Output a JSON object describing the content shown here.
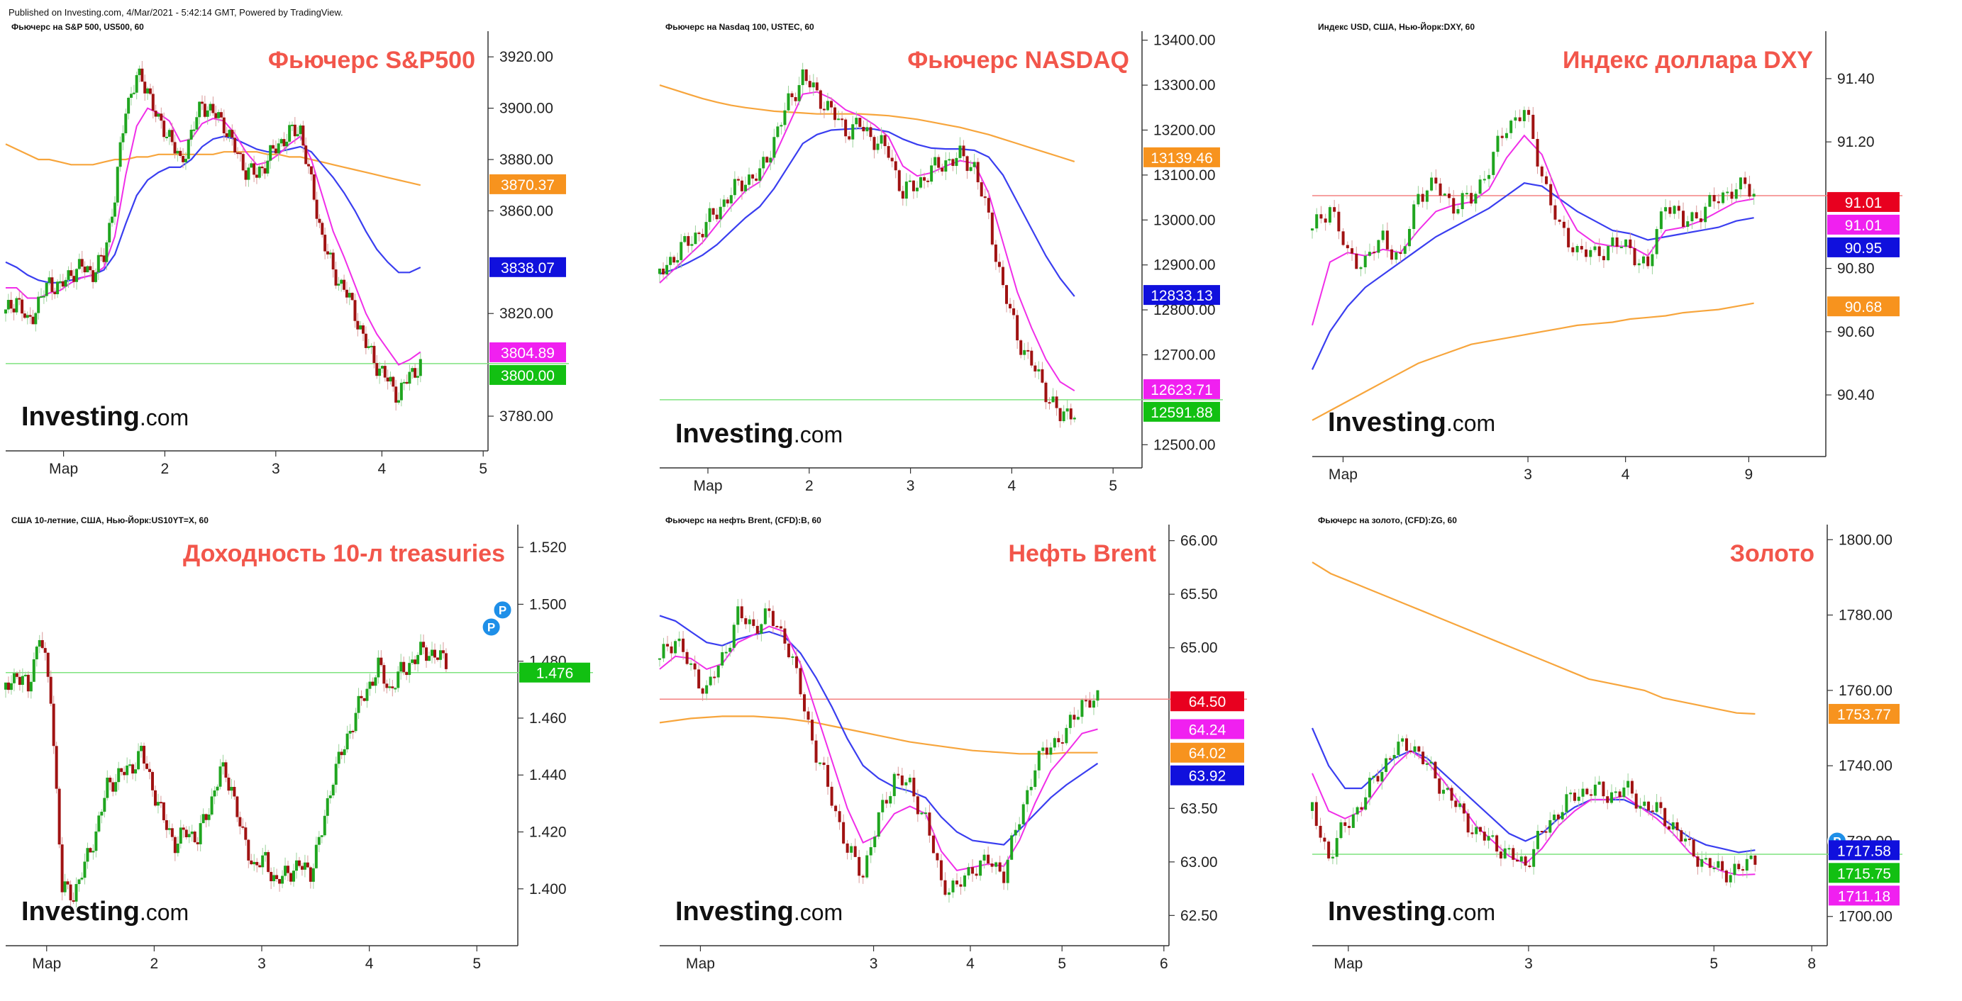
{
  "published": "Published on Investing.com, 4/Mar/2021 - 5:42:14 GMT, Powered by TradingView.",
  "watermark": {
    "main": "Investing",
    "suffix": ".com"
  },
  "colors": {
    "title": "#f2564b",
    "candle_up": "#1fa51f",
    "candle_down": "#a01212",
    "ema_fast": "#f02ee8",
    "ema_mid": "#3a3ef0",
    "ma_slow": "#f7a53c",
    "last_price_line": "#7fe37f",
    "level_line_red": "#f48080"
  },
  "chart_data": [
    {
      "type": "candlestick",
      "symbol": "Фьючерс на S&P 500, US500, 60",
      "title": "Фьючерс S&P500",
      "x_ticks": [
        "Мар",
        "2",
        "3",
        "4",
        "5"
      ],
      "y_ticks": [
        "3920.00",
        "3900.00",
        "3880.00",
        "3860.00",
        "3820.00",
        "3780.00"
      ],
      "ylim": [
        3772,
        3930
      ],
      "price_labels": [
        {
          "text": "3870.37",
          "value": 3870.37,
          "color": "#f7931e"
        },
        {
          "text": "3838.07",
          "value": 3838.07,
          "color": "#1010dd"
        },
        {
          "text": "3804.89",
          "value": 3804.89,
          "color": "#f020f0"
        },
        {
          "text": "3800.00",
          "value": 3800.0,
          "color": "#12c012"
        }
      ],
      "hline": {
        "value": 3800.5,
        "color": "#7fe37f"
      },
      "path": [
        3820,
        3826,
        3816,
        3824,
        3832,
        3830,
        3836,
        3838,
        3836,
        3842,
        3866,
        3900,
        3912,
        3908,
        3894,
        3890,
        3878,
        3890,
        3902,
        3898,
        3894,
        3884,
        3876,
        3874,
        3880,
        3886,
        3890,
        3892,
        3870,
        3850,
        3836,
        3830,
        3820,
        3808,
        3800,
        3794,
        3788,
        3796,
        3800
      ],
      "ma_slow": [
        3886,
        3884,
        3882,
        3880,
        3880,
        3879,
        3878,
        3878,
        3878,
        3879,
        3880,
        3880,
        3881,
        3881,
        3882,
        3882,
        3882,
        3882,
        3882,
        3882,
        3883,
        3883,
        3883,
        3883,
        3882,
        3882,
        3881,
        3881,
        3880,
        3879,
        3878,
        3877,
        3876,
        3875,
        3874,
        3873,
        3872,
        3871,
        3870
      ],
      "ema_mid": [
        3840,
        3838,
        3835,
        3833,
        3832,
        3832,
        3833,
        3834,
        3835,
        3837,
        3843,
        3855,
        3866,
        3872,
        3875,
        3877,
        3877,
        3880,
        3885,
        3888,
        3889,
        3888,
        3886,
        3884,
        3883,
        3883,
        3884,
        3885,
        3883,
        3878,
        3873,
        3867,
        3860,
        3852,
        3845,
        3840,
        3836,
        3836,
        3838
      ],
      "ema_fast": [
        3830,
        3830,
        3826,
        3826,
        3828,
        3829,
        3832,
        3834,
        3835,
        3838,
        3850,
        3874,
        3893,
        3900,
        3898,
        3895,
        3887,
        3888,
        3894,
        3896,
        3895,
        3890,
        3883,
        3878,
        3879,
        3882,
        3886,
        3889,
        3880,
        3866,
        3852,
        3842,
        3831,
        3820,
        3812,
        3806,
        3800,
        3802,
        3805
      ]
    },
    {
      "type": "candlestick",
      "symbol": "Фьючерс на Nasdaq 100, USTEC, 60",
      "title": "Фьючерс NASDAQ",
      "x_ticks": [
        "Мар",
        "2",
        "3",
        "4",
        "5"
      ],
      "y_ticks": [
        "13400.00",
        "13300.00",
        "13200.00",
        "13100.00",
        "13000.00",
        "12900.00",
        "12800.00",
        "12700.00",
        "12500.00"
      ],
      "ylim": [
        12480,
        13420
      ],
      "price_labels": [
        {
          "text": "13139.46",
          "value": 13139.46,
          "color": "#f7931e"
        },
        {
          "text": "12833.13",
          "value": 12833.13,
          "color": "#1010dd"
        },
        {
          "text": "12623.71",
          "value": 12623.71,
          "color": "#f020f0"
        },
        {
          "text": "12591.88",
          "value": 12591.88,
          "color": "#12c012"
        }
      ],
      "hline": {
        "value": 12600,
        "color": "#7fe37f"
      },
      "path": [
        12880,
        12920,
        12950,
        12980,
        13020,
        13060,
        13090,
        13100,
        13180,
        13260,
        13320,
        13280,
        13240,
        13200,
        13210,
        13180,
        13150,
        13060,
        13080,
        13110,
        13130,
        13140,
        13120,
        13000,
        12850,
        12740,
        12680,
        12620,
        12560,
        12580
      ],
      "ma_slow": [
        13300,
        13290,
        13280,
        13270,
        13262,
        13255,
        13250,
        13246,
        13242,
        13240,
        13238,
        13236,
        13236,
        13236,
        13236,
        13234,
        13232,
        13228,
        13224,
        13218,
        13212,
        13206,
        13198,
        13190,
        13180,
        13170,
        13160,
        13150,
        13140,
        13130
      ],
      "ema_mid": [
        12880,
        12890,
        12905,
        12922,
        12945,
        12975,
        13005,
        13030,
        13070,
        13120,
        13170,
        13190,
        13200,
        13202,
        13204,
        13202,
        13196,
        13180,
        13168,
        13160,
        13158,
        13158,
        13155,
        13140,
        13100,
        13040,
        12980,
        12920,
        12870,
        12830
      ],
      "ema_fast": [
        12860,
        12890,
        12920,
        12950,
        12990,
        13030,
        13065,
        13085,
        13140,
        13210,
        13280,
        13285,
        13270,
        13245,
        13232,
        13212,
        13185,
        13120,
        13098,
        13105,
        13120,
        13132,
        13126,
        13060,
        12950,
        12840,
        12760,
        12690,
        12640,
        12620
      ]
    },
    {
      "type": "candlestick",
      "symbol": "Индекс USD, США, Нью-Йорк:DXY, 60",
      "title": "Индекс доллара DXY",
      "x_ticks": [
        "Мар",
        "3",
        "4",
        "9"
      ],
      "y_ticks": [
        "91.40",
        "91.20",
        "90.80",
        "90.60",
        "90.40"
      ],
      "ylim": [
        90.25,
        91.55
      ],
      "price_labels": [
        {
          "text": "91.01",
          "value": 91.01,
          "color": "#e8001f"
        },
        {
          "text": "91.01",
          "value": 91.01,
          "color": "#f020f0"
        },
        {
          "text": "90.95",
          "value": 90.95,
          "color": "#1010dd"
        },
        {
          "text": "90.68",
          "value": 90.68,
          "color": "#f7931e"
        }
      ],
      "hline": {
        "value": 91.03,
        "color": "#f48080"
      },
      "path": [
        90.92,
        91.0,
        90.84,
        90.82,
        90.9,
        90.82,
        91.04,
        91.06,
        91.0,
        91.02,
        91.12,
        91.25,
        91.3,
        91.1,
        90.92,
        90.86,
        90.84,
        90.88,
        90.86,
        90.8,
        91.02,
        90.94,
        90.98,
        91.02,
        91.06,
        91.04
      ],
      "ma_slow": [
        90.32,
        90.35,
        90.38,
        90.41,
        90.44,
        90.47,
        90.5,
        90.52,
        90.54,
        90.56,
        90.57,
        90.58,
        90.59,
        90.6,
        90.61,
        90.62,
        90.625,
        90.63,
        90.64,
        90.645,
        90.65,
        90.66,
        90.665,
        90.67,
        90.68,
        90.69
      ],
      "ema_mid": [
        90.48,
        90.6,
        90.68,
        90.74,
        90.78,
        90.82,
        90.86,
        90.9,
        90.93,
        90.96,
        90.99,
        91.03,
        91.07,
        91.06,
        91.02,
        90.98,
        90.95,
        90.92,
        90.91,
        90.89,
        90.9,
        90.91,
        90.92,
        90.93,
        90.95,
        90.96
      ],
      "ema_fast": [
        90.62,
        90.82,
        90.85,
        90.84,
        90.86,
        90.85,
        90.92,
        90.98,
        91.0,
        91.01,
        91.05,
        91.15,
        91.22,
        91.16,
        91.02,
        90.92,
        90.88,
        90.87,
        90.87,
        90.84,
        90.92,
        90.93,
        90.95,
        90.98,
        91.01,
        91.02
      ]
    },
    {
      "type": "candlestick",
      "symbol": "США 10-летние, США, Нью-Йорк:US10YT=X, 60",
      "title": "Доходность 10-л treasuries",
      "x_ticks": [
        "Мар",
        "2",
        "3",
        "4",
        "5"
      ],
      "y_ticks": [
        "1.520",
        "1.500",
        "1.480",
        "1.460",
        "1.440",
        "1.420",
        "1.400"
      ],
      "ylim": [
        1.385,
        1.528
      ],
      "price_labels": [
        {
          "text": "1.476",
          "value": 1.476,
          "color": "#12c012"
        }
      ],
      "hline": {
        "value": 1.476,
        "color": "#7fe37f"
      },
      "markers": [
        {
          "text": "P",
          "x": 43,
          "value": 1.492
        },
        {
          "text": "P",
          "x": 44,
          "value": 1.498
        }
      ],
      "path": [
        1.47,
        1.476,
        1.47,
        1.49,
        1.468,
        1.4,
        1.398,
        1.408,
        1.42,
        1.436,
        1.44,
        1.442,
        1.448,
        1.436,
        1.424,
        1.416,
        1.42,
        1.418,
        1.428,
        1.442,
        1.436,
        1.418,
        1.408,
        1.41,
        1.402,
        1.406,
        1.408,
        1.406,
        1.42,
        1.44,
        1.45,
        1.462,
        1.47,
        1.478,
        1.47,
        1.476,
        1.48,
        1.484,
        1.482,
        1.48
      ],
      "ma_slow": [],
      "ema_mid": [],
      "ema_fast": []
    },
    {
      "type": "candlestick",
      "symbol": "Фьючерс на нефть Brent, (CFD):B, 60",
      "title": "Нефть Brent",
      "x_ticks": [
        "Мар",
        "3",
        "4",
        "5",
        "6"
      ],
      "y_ticks": [
        "66.00",
        "65.50",
        "65.00",
        "63.50",
        "63.00",
        "62.50"
      ],
      "ylim": [
        62.35,
        66.15
      ],
      "price_labels": [
        {
          "text": "64.50",
          "value": 64.5,
          "color": "#e8001f"
        },
        {
          "text": "64.24",
          "value": 64.24,
          "color": "#f020f0"
        },
        {
          "text": "64.02",
          "value": 64.02,
          "color": "#f7931e"
        },
        {
          "text": "63.92",
          "value": 63.92,
          "color": "#1010dd"
        }
      ],
      "hline": {
        "value": 64.52,
        "color": "#f48080"
      },
      "path": [
        64.9,
        65.1,
        64.8,
        64.6,
        64.9,
        65.3,
        65.2,
        65.3,
        65.1,
        64.6,
        64.0,
        63.6,
        63.1,
        62.9,
        63.4,
        63.8,
        63.7,
        63.4,
        62.8,
        62.75,
        62.95,
        63.0,
        62.9,
        63.4,
        63.9,
        64.1,
        64.2,
        64.5,
        64.5
      ],
      "ma_slow": [
        64.3,
        64.32,
        64.34,
        64.35,
        64.36,
        64.36,
        64.36,
        64.35,
        64.34,
        64.32,
        64.3,
        64.27,
        64.24,
        64.21,
        64.18,
        64.15,
        64.12,
        64.1,
        64.08,
        64.06,
        64.04,
        64.03,
        64.02,
        64.01,
        64.01,
        64.01,
        64.02,
        64.02,
        64.02
      ],
      "ema_mid": [
        65.3,
        65.25,
        65.15,
        65.05,
        65.02,
        65.08,
        65.12,
        65.15,
        65.1,
        64.95,
        64.72,
        64.45,
        64.15,
        63.9,
        63.78,
        63.7,
        63.66,
        63.6,
        63.42,
        63.28,
        63.2,
        63.18,
        63.16,
        63.3,
        63.45,
        63.6,
        63.72,
        63.82,
        63.92
      ],
      "ema_fast": [
        64.8,
        64.92,
        64.9,
        64.8,
        64.85,
        65.05,
        65.12,
        65.2,
        65.15,
        64.85,
        64.4,
        63.95,
        63.5,
        63.18,
        63.25,
        63.45,
        63.52,
        63.45,
        63.1,
        62.92,
        62.95,
        62.98,
        62.96,
        63.2,
        63.55,
        63.85,
        64.02,
        64.2,
        64.24
      ]
    },
    {
      "type": "candlestick",
      "symbol": "Фьючерс на золото, (CFD):ZG, 60",
      "title": "Золото",
      "x_ticks": [
        "Мар",
        "3",
        "5",
        "8"
      ],
      "y_ticks": [
        "1800.00",
        "1780.00",
        "1760.00",
        "1740.00",
        "1720.00",
        "1700.00"
      ],
      "ylim": [
        1696,
        1804
      ],
      "price_labels": [
        {
          "text": "1753.77",
          "value": 1753.77,
          "color": "#f7931e"
        },
        {
          "text": "1717.58",
          "value": 1717.58,
          "color": "#1010dd"
        },
        {
          "text": "1715.75",
          "value": 1715.75,
          "color": "#12c012"
        },
        {
          "text": "1711.18",
          "value": 1711.18,
          "color": "#f020f0"
        }
      ],
      "hline": {
        "value": 1716.5,
        "color": "#7fe37f"
      },
      "markers": [
        {
          "text": "P",
          "x": 32,
          "value": 1720
        }
      ],
      "path": [
        1728,
        1716,
        1724,
        1730,
        1738,
        1744,
        1746,
        1740,
        1734,
        1728,
        1722,
        1720,
        1716,
        1714,
        1722,
        1728,
        1732,
        1734,
        1732,
        1734,
        1730,
        1728,
        1724,
        1718,
        1714,
        1712,
        1712,
        1716
      ],
      "ma_slow": [
        1794,
        1791,
        1789,
        1787,
        1785,
        1783,
        1781,
        1779,
        1777,
        1775,
        1773,
        1771,
        1769,
        1767,
        1765,
        1763,
        1762,
        1761,
        1760,
        1758,
        1757,
        1756,
        1755,
        1754,
        1753.77
      ],
      "ema_mid": [
        1750,
        1740,
        1734,
        1734,
        1738,
        1742,
        1744,
        1742,
        1738,
        1734,
        1730,
        1726,
        1722,
        1720,
        1722,
        1726,
        1729,
        1731,
        1731,
        1731,
        1729,
        1727,
        1724,
        1721,
        1719,
        1718,
        1717,
        1717.6
      ],
      "ema_fast": [
        1738,
        1728,
        1726,
        1728,
        1734,
        1740,
        1744,
        1741,
        1736,
        1730,
        1724,
        1720,
        1716,
        1714,
        1718,
        1724,
        1728,
        1731,
        1731,
        1732,
        1729,
        1726,
        1722,
        1717,
        1714,
        1712,
        1711,
        1711.2
      ]
    }
  ]
}
